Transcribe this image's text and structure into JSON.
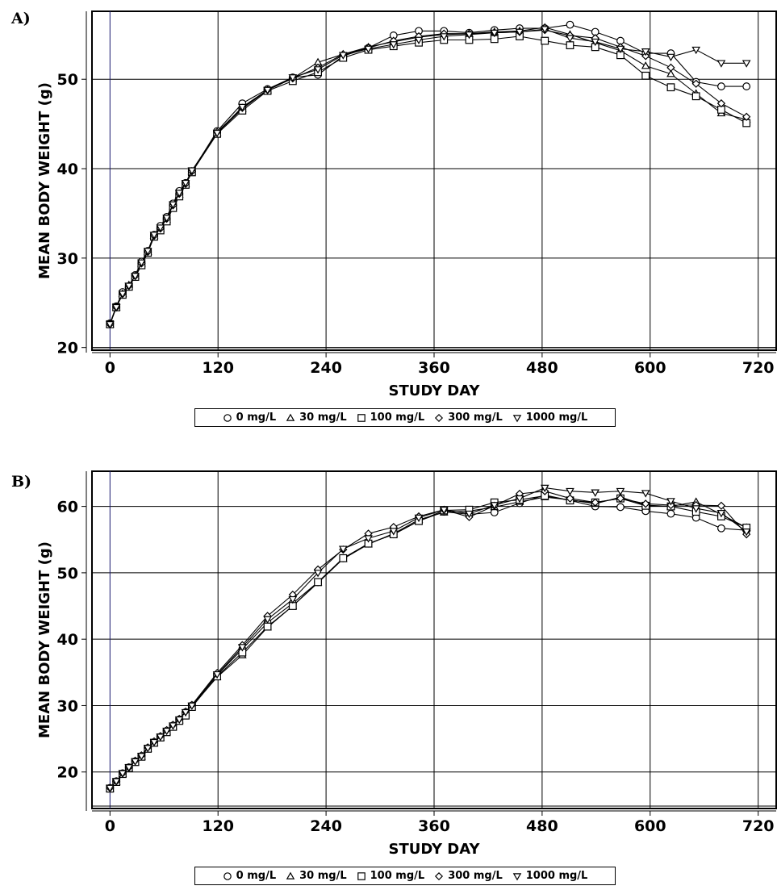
{
  "chart_data": [
    {
      "id": "A",
      "panel_label": "A)",
      "type": "line",
      "xlabel": "STUDY DAY",
      "ylabel": "MEAN BODY WEIGHT (g)",
      "xlim": [
        -20,
        740
      ],
      "ylim": [
        19.7,
        57.6
      ],
      "xticks": [
        0,
        120,
        240,
        360,
        480,
        600,
        720
      ],
      "yticks": [
        20,
        30,
        40,
        50
      ],
      "grid": true,
      "legend_position": "bottom",
      "x": [
        0,
        7,
        14,
        21,
        28,
        35,
        42,
        49,
        56,
        63,
        70,
        77,
        84,
        91,
        119,
        147,
        175,
        203,
        231,
        259,
        287,
        315,
        343,
        371,
        399,
        427,
        455,
        483,
        511,
        539,
        567,
        595,
        623,
        651,
        679,
        707
      ],
      "series": [
        {
          "name": "0 mg/L",
          "marker": "circle",
          "values": [
            22.7,
            24.6,
            26.2,
            26.8,
            28.1,
            29.6,
            30.8,
            32.6,
            33.6,
            34.6,
            36.1,
            37.5,
            38.4,
            39.7,
            44.2,
            47.3,
            48.9,
            50.2,
            50.5,
            52.6,
            53.5,
            54.9,
            55.4,
            55.4,
            55.2,
            55.5,
            55.7,
            55.7,
            56.1,
            55.3,
            54.3,
            52.9,
            52.9,
            49.7,
            49.2,
            49.2
          ]
        },
        {
          "name": "30 mg/L",
          "marker": "triangle-up",
          "values": [
            22.6,
            24.5,
            26.0,
            27.0,
            28.0,
            29.4,
            30.7,
            32.5,
            33.3,
            34.3,
            35.8,
            37.1,
            38.3,
            39.7,
            44.0,
            46.7,
            48.8,
            50.1,
            51.9,
            52.8,
            53.6,
            54.2,
            54.7,
            55.0,
            55.1,
            55.3,
            55.4,
            55.8,
            55.0,
            54.1,
            53.2,
            51.5,
            50.6,
            48.4,
            46.2,
            45.5
          ]
        },
        {
          "name": "100 mg/L",
          "marker": "square",
          "values": [
            22.6,
            24.5,
            25.9,
            26.8,
            27.9,
            29.2,
            30.6,
            32.4,
            33.1,
            34.1,
            35.6,
            36.9,
            38.2,
            39.6,
            43.9,
            46.5,
            48.7,
            49.8,
            50.8,
            52.4,
            53.3,
            53.7,
            54.1,
            54.4,
            54.4,
            54.5,
            54.8,
            54.3,
            53.8,
            53.6,
            52.7,
            50.4,
            49.1,
            48.1,
            46.6,
            45.1
          ]
        },
        {
          "name": "300 mg/L",
          "marker": "diamond",
          "values": [
            22.6,
            24.5,
            26.0,
            26.9,
            28.0,
            29.4,
            30.7,
            32.5,
            33.3,
            34.4,
            35.9,
            37.2,
            38.3,
            39.7,
            44.1,
            46.8,
            48.8,
            50.1,
            51.3,
            52.8,
            53.5,
            54.3,
            54.8,
            55.1,
            55.1,
            55.2,
            55.3,
            55.5,
            54.9,
            54.6,
            53.6,
            52.6,
            51.3,
            49.5,
            47.3,
            45.8
          ]
        },
        {
          "name": "1000 mg/L",
          "marker": "triangle-down",
          "values": [
            22.6,
            24.5,
            26.0,
            26.9,
            28.0,
            29.5,
            30.8,
            32.6,
            33.4,
            34.5,
            36.0,
            37.3,
            38.4,
            39.8,
            44.0,
            46.9,
            48.8,
            50.2,
            51.1,
            52.7,
            53.4,
            53.9,
            54.4,
            54.8,
            55.0,
            55.2,
            55.3,
            55.6,
            54.6,
            54.2,
            53.4,
            53.1,
            52.5,
            53.3,
            51.8,
            51.8
          ]
        }
      ]
    },
    {
      "id": "B",
      "panel_label": "B)",
      "type": "line",
      "xlabel": "STUDY DAY",
      "ylabel": "MEAN BODY WEIGHT (g)",
      "xlim": [
        -20,
        740
      ],
      "ylim": [
        14.5,
        65.3
      ],
      "xticks": [
        0,
        120,
        240,
        360,
        480,
        600,
        720
      ],
      "yticks": [
        20,
        30,
        40,
        50,
        60
      ],
      "grid": true,
      "legend_position": "bottom",
      "x": [
        0,
        7,
        14,
        21,
        28,
        35,
        42,
        49,
        56,
        63,
        70,
        77,
        84,
        91,
        119,
        147,
        175,
        203,
        231,
        259,
        287,
        315,
        343,
        371,
        399,
        427,
        455,
        483,
        511,
        539,
        567,
        595,
        623,
        651,
        679,
        707
      ],
      "series": [
        {
          "name": "0 mg/L",
          "marker": "circle",
          "values": [
            17.6,
            18.6,
            19.8,
            20.7,
            21.6,
            22.4,
            23.6,
            24.5,
            25.3,
            26.2,
            27.0,
            27.9,
            29.0,
            30.0,
            34.6,
            38.5,
            42.5,
            45.4,
            48.6,
            52.2,
            54.4,
            55.8,
            57.8,
            59.2,
            58.8,
            59.1,
            60.5,
            61.7,
            60.9,
            60.0,
            59.9,
            59.3,
            58.9,
            58.3,
            56.7,
            56.4
          ]
        },
        {
          "name": "30 mg/L",
          "marker": "triangle-up",
          "values": [
            17.5,
            18.5,
            19.7,
            20.6,
            21.5,
            22.3,
            23.5,
            24.4,
            25.2,
            26.1,
            26.9,
            27.8,
            28.9,
            29.9,
            34.3,
            37.6,
            41.8,
            45.0,
            48.5,
            52.1,
            54.3,
            55.9,
            58.0,
            59.1,
            59.3,
            59.9,
            60.7,
            61.4,
            61.0,
            60.4,
            61.4,
            60.2,
            60.0,
            60.7,
            58.8,
            56.8
          ]
        },
        {
          "name": "100 mg/L",
          "marker": "square",
          "values": [
            17.5,
            18.5,
            19.7,
            20.6,
            21.5,
            22.3,
            23.5,
            24.4,
            25.2,
            26.0,
            26.8,
            27.7,
            28.5,
            29.8,
            34.4,
            38.0,
            41.9,
            45.0,
            48.6,
            52.2,
            54.4,
            55.8,
            57.8,
            59.4,
            59.5,
            60.6,
            61.0,
            61.6,
            60.9,
            60.6,
            61.2,
            60.1,
            60.0,
            59.2,
            58.5,
            56.8
          ]
        },
        {
          "name": "300 mg/L",
          "marker": "diamond",
          "values": [
            17.6,
            18.6,
            19.8,
            20.7,
            21.7,
            22.5,
            23.7,
            24.6,
            25.4,
            26.3,
            27.1,
            28.0,
            29.1,
            30.1,
            34.9,
            39.1,
            43.5,
            46.7,
            50.5,
            53.5,
            55.9,
            56.9,
            58.5,
            59.5,
            58.4,
            60.1,
            61.9,
            62.3,
            61.2,
            60.6,
            61.2,
            60.4,
            60.2,
            60.2,
            60.1,
            55.8
          ]
        },
        {
          "name": "1000 mg/L",
          "marker": "triangle-down",
          "values": [
            17.6,
            18.6,
            19.8,
            20.7,
            21.6,
            22.4,
            23.6,
            24.5,
            25.3,
            26.2,
            27.0,
            27.9,
            29.0,
            30.0,
            34.7,
            38.8,
            43.0,
            46.0,
            50.0,
            53.6,
            55.2,
            56.3,
            58.3,
            59.5,
            58.9,
            60.2,
            61.2,
            62.8,
            62.3,
            62.1,
            62.3,
            62.0,
            60.8,
            59.7,
            59.0,
            56.2
          ]
        }
      ]
    }
  ]
}
